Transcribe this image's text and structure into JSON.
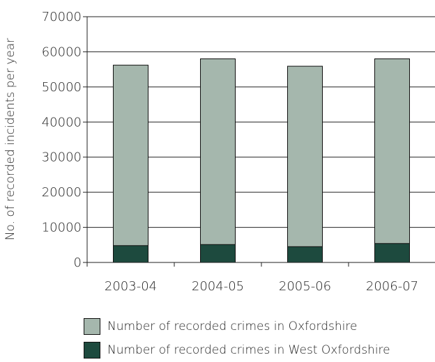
{
  "chart_data": {
    "type": "bar",
    "stacked": true,
    "categories": [
      "2003-04",
      "2004-05",
      "2005-06",
      "2006-07"
    ],
    "series": [
      {
        "name": "Number of recorded crimes in West Oxfordshire",
        "color": "#1d4a3e",
        "values": [
          4800,
          5100,
          4500,
          5400
        ]
      },
      {
        "name": "Number of recorded crimes in Oxfordshire",
        "color": "#a5b7ad",
        "values": [
          56200,
          58000,
          55900,
          58000
        ]
      }
    ],
    "ylabel": "No. of recorded incidents per year",
    "xlabel": "",
    "ylim": [
      0,
      70000
    ],
    "yticks": [
      0,
      10000,
      20000,
      30000,
      40000,
      50000,
      60000,
      70000
    ],
    "grid": true,
    "legend_position": "bottom"
  },
  "legend": [
    {
      "label": "Number of recorded crimes in Oxfordshire",
      "color": "#a5b7ad"
    },
    {
      "label": "Number of recorded crimes in West Oxfordshire",
      "color": "#1d4a3e"
    }
  ]
}
